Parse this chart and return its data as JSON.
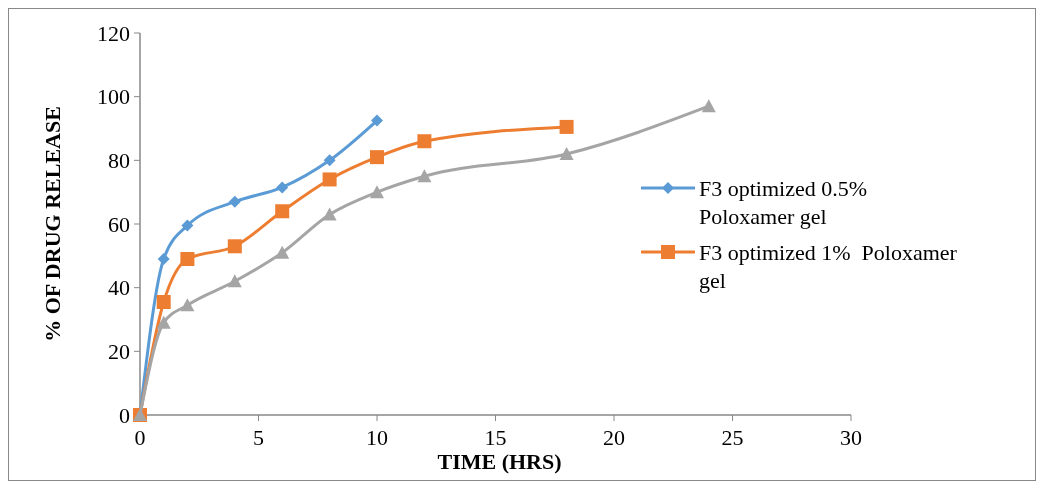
{
  "chart_data": {
    "type": "line",
    "xlabel": "TIME (HRS)",
    "ylabel": "% OF DRUG RELEASE",
    "xlim": [
      0,
      30
    ],
    "xticks": [
      0,
      5,
      10,
      15,
      20,
      25,
      30
    ],
    "ylim": [
      0,
      120
    ],
    "yticks": [
      0,
      20,
      40,
      60,
      80,
      100,
      120
    ],
    "grid": false,
    "legend": "right",
    "series": [
      {
        "name": "F3 optimized 0.5% Poloxamer gel",
        "color": "#5b9bd5",
        "marker": "diamond",
        "x": [
          0,
          1,
          2,
          4,
          6,
          8,
          10
        ],
        "values": [
          0,
          49,
          59.5,
          67,
          71.5,
          80,
          92.5
        ]
      },
      {
        "name": "F3 optimized 1%  Poloxamer gel",
        "color": "#ed7d31",
        "marker": "square",
        "x": [
          0,
          1,
          2,
          4,
          6,
          8,
          10,
          12,
          18
        ],
        "values": [
          0,
          35.5,
          49,
          53,
          64,
          74,
          81,
          86,
          90.5
        ]
      },
      {
        "color": "#a5a5a5",
        "marker": "triangle",
        "x": [
          0,
          1,
          2,
          4,
          6,
          8,
          10,
          12,
          18,
          24
        ],
        "values": [
          0,
          29,
          34.5,
          42,
          51,
          63,
          70,
          75,
          82,
          97
        ]
      }
    ]
  }
}
